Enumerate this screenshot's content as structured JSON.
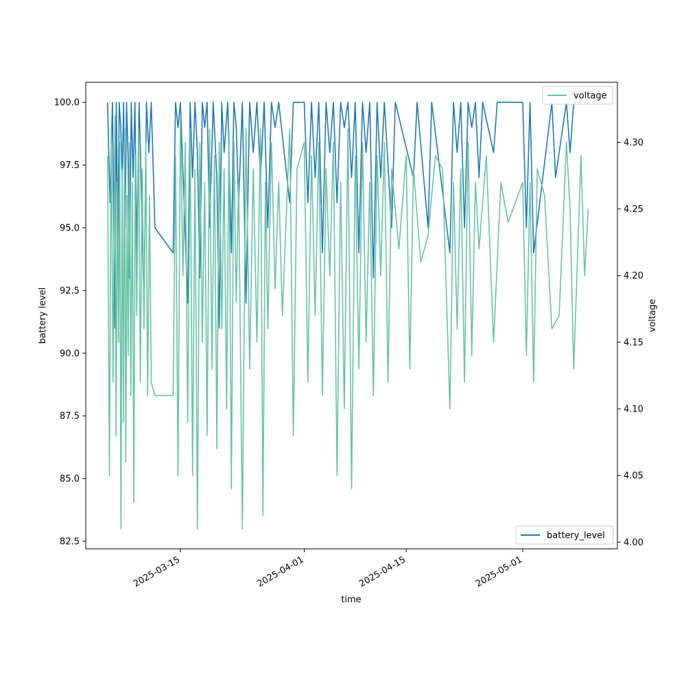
{
  "chart_data": {
    "type": "line",
    "xlabel": "time",
    "ylabel_left": "battery level",
    "ylabel_right": "voltage",
    "x_ticks": [
      "2025-03-15",
      "2025-04-01",
      "2025-04-15",
      "2025-05-01"
    ],
    "y_left_ticks": [
      "82.5",
      "85.0",
      "87.5",
      "90.0",
      "92.5",
      "95.0",
      "97.5",
      "100.0"
    ],
    "y_right_ticks": [
      "4.00",
      "4.05",
      "4.10",
      "4.15",
      "4.20",
      "4.25",
      "4.30"
    ],
    "ylim_left": [
      82.2,
      100.8
    ],
    "ylim_right": [
      3.995,
      4.345
    ],
    "xlim": [
      "2025-03-02",
      "2025-05-14"
    ],
    "legend_left": {
      "label": "battery_level",
      "placement": "lower-right"
    },
    "legend_right": {
      "label": "voltage",
      "placement": "upper-right"
    },
    "series": [
      {
        "name": "battery_level",
        "axis": "left",
        "color": "#1f77b4",
        "x": [
          "2025-03-05",
          "2025-03-05",
          "2025-03-05",
          "2025-03-06",
          "2025-03-06",
          "2025-03-06",
          "2025-03-06",
          "2025-03-06",
          "2025-03-07",
          "2025-03-07",
          "2025-03-07",
          "2025-03-07",
          "2025-03-07",
          "2025-03-08",
          "2025-03-08",
          "2025-03-08",
          "2025-03-08",
          "2025-03-09",
          "2025-03-09",
          "2025-03-09",
          "2025-03-10",
          "2025-03-10",
          "2025-03-10",
          "2025-03-11",
          "2025-03-11",
          "2025-03-14",
          "2025-03-14",
          "2025-03-14",
          "2025-03-15",
          "2025-03-15",
          "2025-03-16",
          "2025-03-16",
          "2025-03-16",
          "2025-03-17",
          "2025-03-17",
          "2025-03-17",
          "2025-03-18",
          "2025-03-18",
          "2025-03-18",
          "2025-03-19",
          "2025-03-19",
          "2025-03-20",
          "2025-03-20",
          "2025-03-20",
          "2025-03-21",
          "2025-03-21",
          "2025-03-22",
          "2025-03-22",
          "2025-03-22",
          "2025-03-23",
          "2025-03-23",
          "2025-03-24",
          "2025-03-24",
          "2025-03-25",
          "2025-03-25",
          "2025-03-26",
          "2025-03-26",
          "2025-03-27",
          "2025-03-27",
          "2025-03-28",
          "2025-03-28",
          "2025-03-30",
          "2025-03-30",
          "2025-04-01",
          "2025-04-01",
          "2025-04-02",
          "2025-04-02",
          "2025-04-03",
          "2025-04-03",
          "2025-04-04",
          "2025-04-04",
          "2025-04-05",
          "2025-04-05",
          "2025-04-06",
          "2025-04-06",
          "2025-04-07",
          "2025-04-07",
          "2025-04-08",
          "2025-04-08",
          "2025-04-09",
          "2025-04-09",
          "2025-04-10",
          "2025-04-10",
          "2025-04-11",
          "2025-04-11",
          "2025-04-12",
          "2025-04-13",
          "2025-04-13",
          "2025-04-16",
          "2025-04-16",
          "2025-04-18",
          "2025-04-18",
          "2025-04-21",
          "2025-04-21",
          "2025-04-22",
          "2025-04-22",
          "2025-04-23",
          "2025-04-23",
          "2025-04-24",
          "2025-04-24",
          "2025-04-25",
          "2025-04-25",
          "2025-04-27",
          "2025-04-27",
          "2025-05-01",
          "2025-05-01",
          "2025-05-02",
          "2025-05-02",
          "2025-05-05",
          "2025-05-05",
          "2025-05-07",
          "2025-05-07",
          "2025-05-08",
          "2025-05-09",
          "2025-05-10"
        ],
        "values": [
          100,
          96,
          100,
          91,
          100,
          94,
          100,
          99,
          97,
          100,
          95,
          100,
          98,
          93,
          100,
          97,
          100,
          94,
          100,
          96,
          92,
          100,
          98,
          100,
          95,
          94,
          100,
          99,
          100,
          96,
          92,
          100,
          97,
          100,
          98,
          93,
          100,
          99,
          100,
          95,
          100,
          97,
          91,
          100,
          98,
          100,
          94,
          100,
          99,
          96,
          100,
          92,
          100,
          98,
          100,
          97,
          100,
          95,
          100,
          99,
          100,
          96,
          100,
          100,
          96,
          100,
          97,
          100,
          94,
          100,
          98,
          100,
          96,
          100,
          99,
          100,
          97,
          100,
          94,
          100,
          98,
          100,
          93,
          100,
          97,
          100,
          95,
          100,
          97,
          100,
          95,
          100,
          94,
          100,
          98,
          100,
          95,
          100,
          99,
          100,
          97,
          100,
          98,
          100,
          100,
          95,
          100,
          94,
          100,
          97,
          100,
          98,
          100,
          100,
          100
        ]
      },
      {
        "name": "voltage",
        "axis": "right",
        "color": "#66c2a5",
        "x": [
          "2025-03-05",
          "2025-03-05",
          "2025-03-05",
          "2025-03-05",
          "2025-03-06",
          "2025-03-06",
          "2025-03-06",
          "2025-03-06",
          "2025-03-06",
          "2025-03-06",
          "2025-03-07",
          "2025-03-07",
          "2025-03-07",
          "2025-03-07",
          "2025-03-07",
          "2025-03-07",
          "2025-03-08",
          "2025-03-08",
          "2025-03-08",
          "2025-03-08",
          "2025-03-08",
          "2025-03-09",
          "2025-03-09",
          "2025-03-09",
          "2025-03-09",
          "2025-03-10",
          "2025-03-10",
          "2025-03-10",
          "2025-03-10",
          "2025-03-11",
          "2025-03-11",
          "2025-03-14",
          "2025-03-14",
          "2025-03-14",
          "2025-03-15",
          "2025-03-15",
          "2025-03-15",
          "2025-03-16",
          "2025-03-16",
          "2025-03-16",
          "2025-03-17",
          "2025-03-17",
          "2025-03-17",
          "2025-03-18",
          "2025-03-18",
          "2025-03-18",
          "2025-03-19",
          "2025-03-19",
          "2025-03-19",
          "2025-03-20",
          "2025-03-20",
          "2025-03-20",
          "2025-03-21",
          "2025-03-21",
          "2025-03-21",
          "2025-03-22",
          "2025-03-22",
          "2025-03-22",
          "2025-03-23",
          "2025-03-23",
          "2025-03-24",
          "2025-03-24",
          "2025-03-25",
          "2025-03-25",
          "2025-03-26",
          "2025-03-26",
          "2025-03-26",
          "2025-03-27",
          "2025-03-27",
          "2025-03-28",
          "2025-03-28",
          "2025-03-29",
          "2025-03-30",
          "2025-03-30",
          "2025-03-31",
          "2025-04-01",
          "2025-04-01",
          "2025-04-02",
          "2025-04-02",
          "2025-04-03",
          "2025-04-03",
          "2025-04-04",
          "2025-04-04",
          "2025-04-05",
          "2025-04-05",
          "2025-04-06",
          "2025-04-06",
          "2025-04-07",
          "2025-04-07",
          "2025-04-08",
          "2025-04-08",
          "2025-04-09",
          "2025-04-09",
          "2025-04-10",
          "2025-04-10",
          "2025-04-11",
          "2025-04-11",
          "2025-04-12",
          "2025-04-12",
          "2025-04-13",
          "2025-04-13",
          "2025-04-14",
          "2025-04-15",
          "2025-04-15",
          "2025-04-16",
          "2025-04-17",
          "2025-04-18",
          "2025-04-19",
          "2025-04-20",
          "2025-04-21",
          "2025-04-21",
          "2025-04-22",
          "2025-04-22",
          "2025-04-23",
          "2025-04-23",
          "2025-04-24",
          "2025-04-24",
          "2025-04-25",
          "2025-04-26",
          "2025-04-27",
          "2025-04-28",
          "2025-04-29",
          "2025-05-01",
          "2025-05-01",
          "2025-05-02",
          "2025-05-02",
          "2025-05-03",
          "2025-05-04",
          "2025-05-05",
          "2025-05-06",
          "2025-05-07",
          "2025-05-07",
          "2025-05-08",
          "2025-05-09",
          "2025-05-09",
          "2025-05-10"
        ],
        "values": [
          4.29,
          4.05,
          4.31,
          4.12,
          4.32,
          4.08,
          4.27,
          4.15,
          4.3,
          4.01,
          4.28,
          4.09,
          4.31,
          4.06,
          4.26,
          4.14,
          4.3,
          4.11,
          4.27,
          4.03,
          4.29,
          4.17,
          4.31,
          4.12,
          4.28,
          4.16,
          4.3,
          4.11,
          4.26,
          4.12,
          4.11,
          4.11,
          4.29,
          4.05,
          4.32,
          4.2,
          4.3,
          4.09,
          4.31,
          4.05,
          4.28,
          4.01,
          4.3,
          4.15,
          4.27,
          4.08,
          4.31,
          4.13,
          4.29,
          4.07,
          4.3,
          4.16,
          4.28,
          4.1,
          4.31,
          4.04,
          4.3,
          4.18,
          4.27,
          4.01,
          4.31,
          4.13,
          4.28,
          4.15,
          4.31,
          4.02,
          4.27,
          4.16,
          4.3,
          4.19,
          4.27,
          4.17,
          4.31,
          4.08,
          4.28,
          4.3,
          4.12,
          4.29,
          4.17,
          4.3,
          4.11,
          4.28,
          4.2,
          4.3,
          4.05,
          4.27,
          4.1,
          4.31,
          4.04,
          4.29,
          4.13,
          4.3,
          4.15,
          4.27,
          4.11,
          4.29,
          4.2,
          4.3,
          4.12,
          4.28,
          4.25,
          4.22,
          4.29,
          4.13,
          4.28,
          4.21,
          4.23,
          4.29,
          4.28,
          4.1,
          4.27,
          4.16,
          4.28,
          4.12,
          4.3,
          4.14,
          4.27,
          4.22,
          4.29,
          4.15,
          4.27,
          4.24,
          4.27,
          4.14,
          4.27,
          4.12,
          4.28,
          4.26,
          4.16,
          4.17,
          4.3,
          4.25,
          4.13,
          4.29,
          4.2,
          4.25
        ]
      }
    ]
  }
}
